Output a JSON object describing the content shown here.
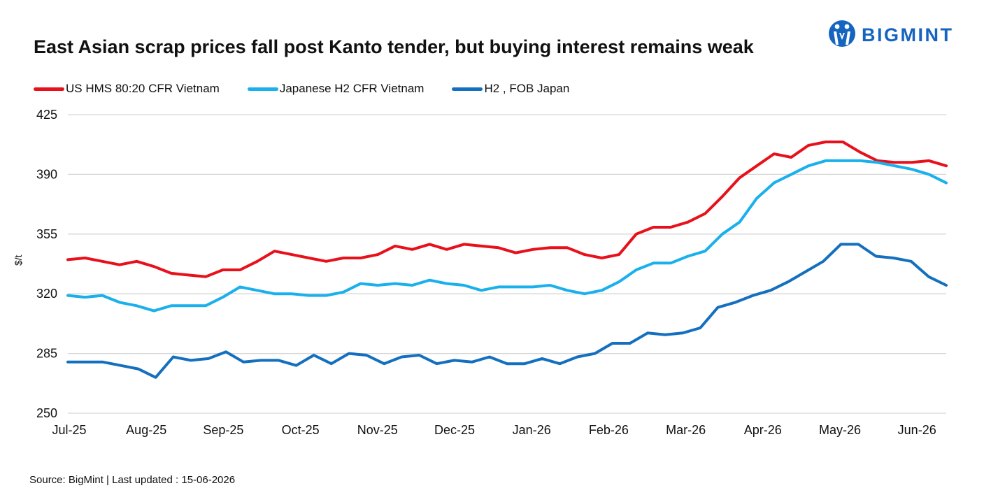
{
  "chart_data": {
    "type": "line",
    "title": "East Asian scrap prices fall post Kanto tender, but buying interest remains weak",
    "ylabel": "$/t",
    "xlabel": "",
    "ylim": [
      250,
      425
    ],
    "y_ticks": [
      425,
      390,
      355,
      320,
      285,
      250
    ],
    "x_tick_labels": [
      "Jul-25",
      "Aug-25",
      "Sep-25",
      "Oct-25",
      "Nov-25",
      "Dec-25",
      "Jan-26",
      "Feb-26",
      "Mar-26",
      "Apr-26",
      "May-26",
      "Jun-26"
    ],
    "grid": "horizontal",
    "legend_position": "top-left",
    "series": [
      {
        "name": "US HMS 80:20 CFR Vietnam",
        "color": "#e8101a",
        "values": [
          340,
          341,
          339,
          337,
          339,
          336,
          332,
          331,
          330,
          334,
          334,
          339,
          345,
          343,
          341,
          339,
          341,
          341,
          343,
          348,
          346,
          349,
          346,
          349,
          348,
          347,
          344,
          346,
          347,
          347,
          343,
          341,
          343,
          355,
          359,
          359,
          362,
          367,
          377,
          388,
          395,
          402,
          400,
          407,
          409,
          409,
          403,
          398,
          397,
          397,
          398,
          395
        ]
      },
      {
        "name": "Japanese H2 CFR Vietnam",
        "color": "#1ab0ec",
        "values": [
          319,
          318,
          319,
          315,
          313,
          310,
          313,
          313,
          313,
          318,
          324,
          322,
          320,
          320,
          319,
          319,
          321,
          326,
          325,
          326,
          325,
          328,
          326,
          325,
          322,
          324,
          324,
          324,
          325,
          322,
          320,
          322,
          327,
          334,
          338,
          338,
          342,
          345,
          355,
          362,
          376,
          385,
          390,
          395,
          398,
          398,
          398,
          397,
          395,
          393,
          390,
          385
        ]
      },
      {
        "name": "H2 , FOB Japan",
        "color": "#1470bf",
        "values": [
          280,
          280,
          280,
          278,
          276,
          271,
          283,
          281,
          282,
          286,
          280,
          281,
          281,
          278,
          284,
          279,
          285,
          284,
          279,
          283,
          284,
          279,
          281,
          280,
          283,
          279,
          279,
          282,
          279,
          283,
          285,
          291,
          291,
          297,
          296,
          297,
          300,
          312,
          315,
          319,
          322,
          327,
          333,
          339,
          349,
          349,
          342,
          341,
          339,
          330,
          325
        ]
      }
    ]
  },
  "logo": {
    "text": "BIGMINT",
    "color": "#1565c0"
  },
  "footer": {
    "source": "Source: BigMint  | Last updated : 15-06-2026"
  }
}
